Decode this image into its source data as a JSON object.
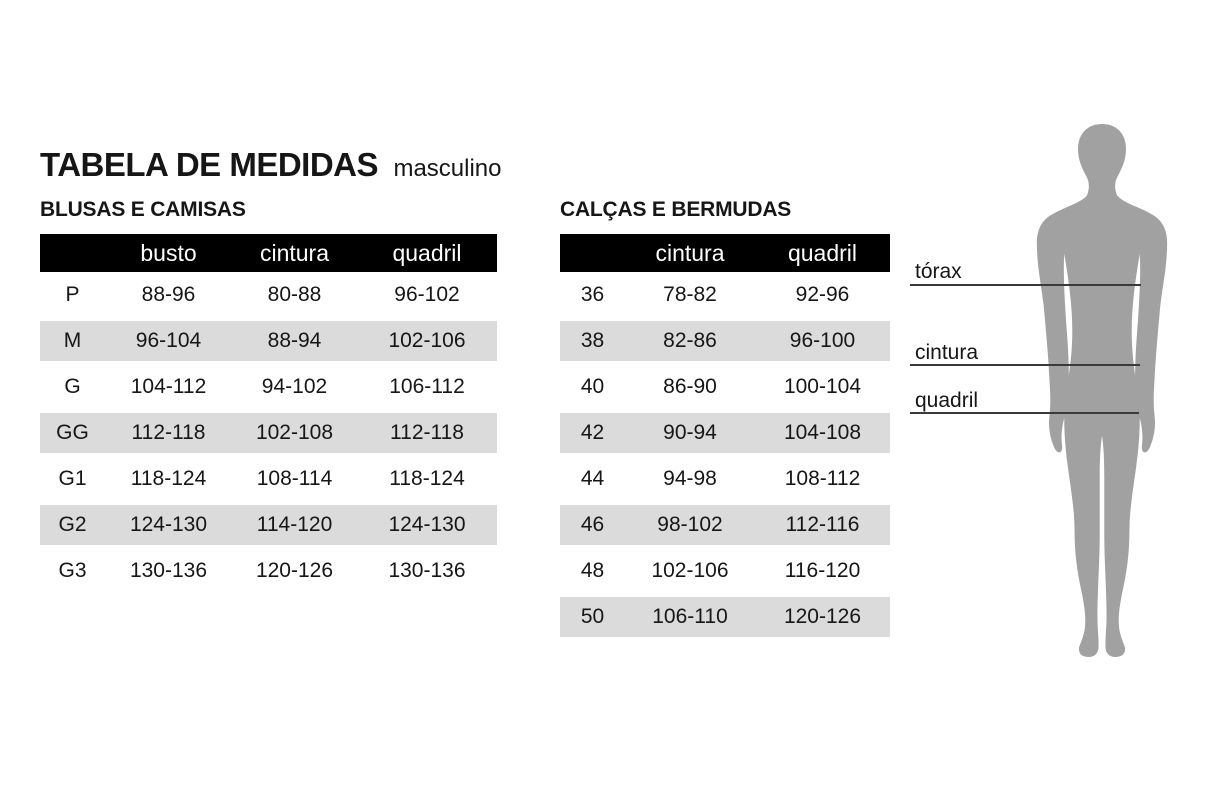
{
  "page": {
    "title": "TABELA DE MEDIDAS",
    "subtitle": "masculino"
  },
  "colors": {
    "header_bg": "#000000",
    "header_text": "#ffffff",
    "row_alt_bg": "#dbdbdb",
    "text": "#161616",
    "silhouette": "#a1a1a1",
    "guide_line": "#3a3a3a"
  },
  "chart_data": [
    {
      "type": "table",
      "title": "BLUSAS E CAMISAS",
      "columns": [
        "",
        "busto",
        "cintura",
        "quadril"
      ],
      "rows": [
        [
          "P",
          "88-96",
          "80-88",
          "96-102"
        ],
        [
          "M",
          "96-104",
          "88-94",
          "102-106"
        ],
        [
          "G",
          "104-112",
          "94-102",
          "106-112"
        ],
        [
          "GG",
          "112-118",
          "102-108",
          "112-118"
        ],
        [
          "G1",
          "118-124",
          "108-114",
          "118-124"
        ],
        [
          "G2",
          "124-130",
          "114-120",
          "124-130"
        ],
        [
          "G3",
          "130-136",
          "120-126",
          "130-136"
        ]
      ]
    },
    {
      "type": "table",
      "title": "CALÇAS E BERMUDAS",
      "columns": [
        "",
        "cintura",
        "quadril"
      ],
      "rows": [
        [
          "36",
          "78-82",
          "92-96"
        ],
        [
          "38",
          "82-86",
          "96-100"
        ],
        [
          "40",
          "86-90",
          "100-104"
        ],
        [
          "42",
          "90-94",
          "104-108"
        ],
        [
          "44",
          "94-98",
          "108-112"
        ],
        [
          "46",
          "98-102",
          "112-116"
        ],
        [
          "48",
          "102-106",
          "116-120"
        ],
        [
          "50",
          "106-110",
          "120-126"
        ]
      ]
    }
  ],
  "measurement_guides": [
    {
      "label": "tórax"
    },
    {
      "label": "cintura"
    },
    {
      "label": "quadril"
    }
  ]
}
